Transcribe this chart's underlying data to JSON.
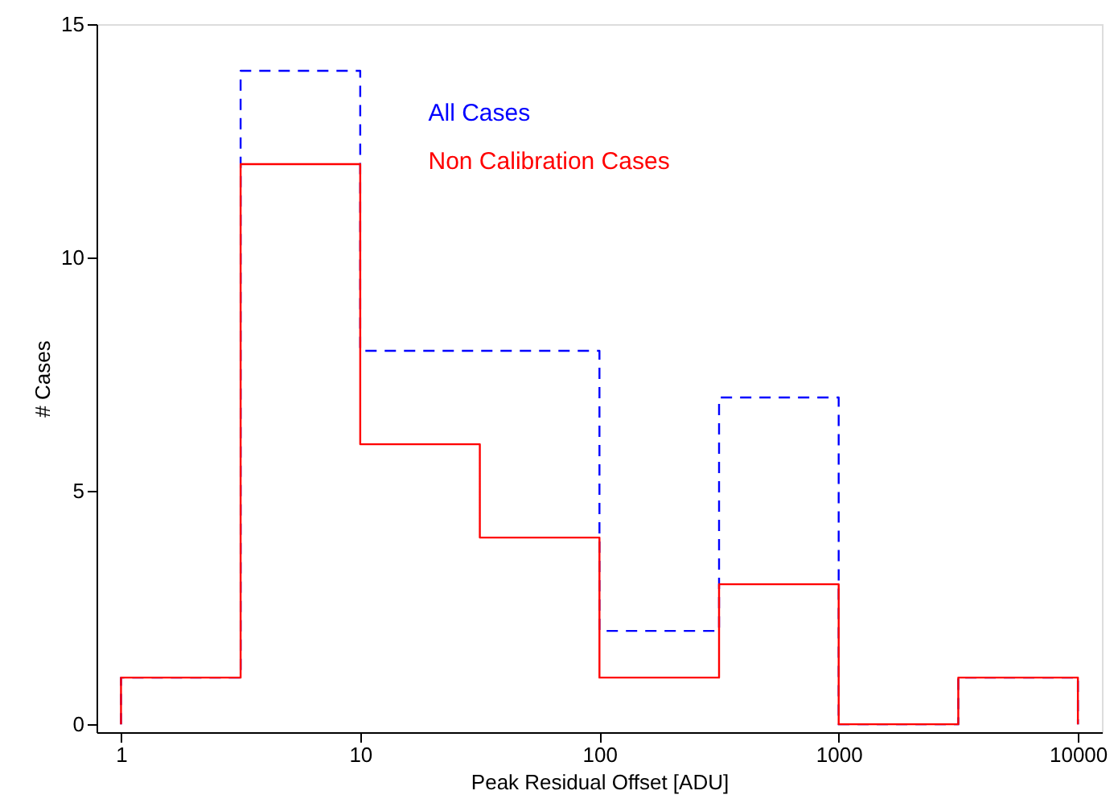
{
  "chart_data": {
    "type": "histogram",
    "xlabel": "Peak Residual Offset [ADU]",
    "ylabel": "# Cases",
    "bins": [
      1,
      3.162,
      10,
      31.62,
      100,
      316.2,
      1000,
      3162,
      10000
    ],
    "series": [
      {
        "name": "All Cases",
        "color": "#0000ff",
        "line_style": "dashed",
        "values": [
          1,
          14,
          8,
          8,
          2,
          7,
          0,
          1
        ]
      },
      {
        "name": "Non Calibration Cases",
        "color": "#ff0000",
        "line_style": "solid",
        "values": [
          1,
          12,
          6,
          4,
          1,
          3,
          0,
          1
        ]
      }
    ],
    "log": "x",
    "xlim": [
      0.79,
      12600
    ],
    "xticks": [
      1,
      10,
      100,
      1000,
      10000
    ],
    "ylim": [
      -0.17,
      15
    ],
    "yticks": [
      0,
      5,
      10,
      15
    ],
    "grid": false,
    "legend": "top"
  }
}
